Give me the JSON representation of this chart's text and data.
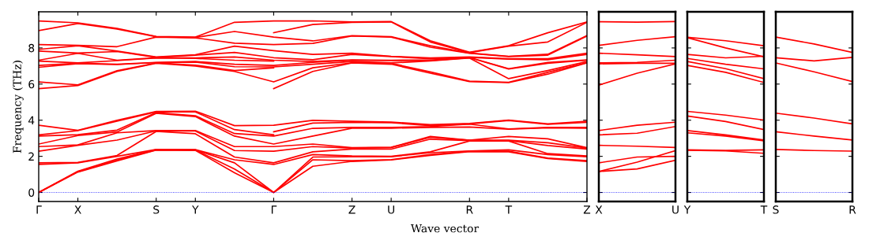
{
  "chart_data": [
    {
      "type": "line",
      "xlabel": "Wave vector",
      "ylabel": "Frequency (THz)",
      "categories": [
        "Γ",
        "X",
        null,
        "S",
        "Y",
        null,
        "Γ",
        null,
        "Z",
        "U",
        null,
        "R",
        "T",
        null,
        "Z"
      ],
      "ylim": [
        -0.5,
        10
      ],
      "yticks": [
        0,
        2,
        4,
        6,
        8
      ],
      "grid": false,
      "marker": "none",
      "line_style": "solid",
      "ref_lines": [
        {
          "axis": "y",
          "value": 0,
          "color": "#0000ff",
          "line_style": "dotted"
        }
      ],
      "series": [
        {
          "color": "#ff0000",
          "values": [
            0,
            1.13,
            1.75,
            2.35,
            2.33,
            1.09,
            0,
            1.45,
            1.72,
            1.8,
            2.05,
            2.26,
            2.25,
            1.88,
            1.72
          ]
        },
        {
          "color": "#ff0000",
          "values": [
            0,
            1.15,
            1.8,
            2.36,
            2.35,
            1.3,
            0,
            1.81,
            1.76,
            1.82,
            2.1,
            2.28,
            2.28,
            1.9,
            1.76
          ]
        },
        {
          "color": "#ff0000",
          "values": [
            0,
            1.18,
            1.85,
            2.37,
            2.36,
            1.64,
            0,
            1.96,
            1.98,
            1.98,
            2.2,
            2.3,
            2.36,
            2.1,
            1.98
          ]
        },
        {
          "color": "#ff0000",
          "values": [
            1.55,
            1.64,
            2.0,
            2.38,
            2.37,
            1.81,
            1.55,
            2.1,
            2.02,
            2.0,
            2.25,
            2.85,
            2.85,
            2.15,
            2.02
          ]
        },
        {
          "color": "#ff0000",
          "values": [
            1.64,
            1.66,
            2.05,
            3.38,
            3.25,
            1.96,
            1.64,
            2.25,
            2.4,
            2.4,
            2.95,
            2.87,
            2.87,
            2.6,
            2.4
          ]
        },
        {
          "color": "#ff0000",
          "values": [
            2.28,
            2.61,
            2.9,
            3.41,
            3.4,
            2.32,
            2.28,
            2.54,
            2.46,
            2.49,
            3.05,
            2.89,
            2.9,
            2.75,
            2.46
          ]
        },
        {
          "color": "#ff0000",
          "values": [
            2.54,
            2.63,
            3.3,
            3.43,
            3.43,
            2.54,
            2.54,
            2.68,
            2.48,
            2.5,
            3.1,
            2.9,
            3.1,
            2.97,
            2.48
          ]
        },
        {
          "color": "#ff0000",
          "values": [
            2.68,
            3.15,
            3.35,
            4.38,
            4.2,
            3.12,
            2.68,
            3.12,
            3.56,
            3.56,
            3.6,
            3.62,
            3.5,
            3.58,
            3.56
          ]
        },
        {
          "color": "#ff0000",
          "values": [
            3.12,
            3.2,
            3.45,
            4.42,
            4.25,
            3.26,
            3.12,
            3.55,
            3.6,
            3.6,
            3.65,
            3.78,
            3.52,
            3.6,
            3.6
          ]
        },
        {
          "color": "#ff0000",
          "values": [
            3.19,
            3.42,
            3.95,
            4.46,
            4.46,
            3.48,
            3.19,
            null,
            null,
            null,
            null,
            null,
            null,
            null,
            null
          ]
        },
        {
          "color": "#ff0000",
          "values": [
            3.72,
            3.44,
            4.0,
            4.49,
            4.5,
            3.7,
            3.72,
            3.99,
            3.94,
            3.9,
            3.75,
            3.82,
            4.01,
            3.8,
            3.94
          ]
        },
        {
          "color": "#ff0000",
          "values": [
            null,
            null,
            null,
            null,
            null,
            null,
            3.36,
            3.84,
            3.88,
            3.86,
            3.7,
            3.8,
            3.98,
            3.77,
            3.88
          ]
        },
        {
          "color": "#ff0000",
          "values": [
            5.75,
            5.92,
            6.7,
            7.15,
            7.0,
            6.7,
            6.12,
            6.9,
            7.18,
            7.15,
            6.67,
            6.16,
            6.1,
            6.65,
            7.18
          ]
        },
        {
          "color": "#ff0000",
          "values": [
            null,
            null,
            null,
            null,
            null,
            null,
            5.75,
            6.7,
            7.17,
            7.1,
            6.6,
            6.14,
            6.08,
            6.55,
            7.17
          ]
        },
        {
          "color": "#ff0000",
          "values": [
            6.12,
            5.96,
            6.74,
            7.17,
            7.05,
            6.75,
            6.9,
            null,
            null,
            null,
            null,
            null,
            null,
            null,
            null
          ]
        },
        {
          "color": "#ff0000",
          "values": [
            6.93,
            7.13,
            7.08,
            7.19,
            7.22,
            6.96,
            6.95,
            7.1,
            7.25,
            7.17,
            7.28,
            7.44,
            6.3,
            6.75,
            7.25
          ]
        },
        {
          "color": "#ff0000",
          "values": [
            7.03,
            7.15,
            7.1,
            7.2,
            7.25,
            7.1,
            7.03,
            7.2,
            7.32,
            7.3,
            7.3,
            7.46,
            6.83,
            7.15,
            7.32
          ]
        },
        {
          "color": "#ff0000",
          "values": [
            7.27,
            7.17,
            7.3,
            7.44,
            7.42,
            7.32,
            7.27,
            null,
            null,
            null,
            null,
            null,
            null,
            null,
            null
          ]
        },
        {
          "color": "#ff0000",
          "values": [
            7.32,
            7.7,
            7.32,
            7.46,
            7.45,
            7.5,
            7.32,
            7.25,
            7.34,
            7.32,
            7.33,
            7.47,
            6.85,
            7.2,
            7.34
          ]
        },
        {
          "color": "#ff0000",
          "values": [
            7.83,
            7.72,
            7.8,
            7.48,
            7.6,
            7.75,
            7.46,
            7.35,
            7.64,
            7.52,
            7.4,
            7.48,
            7.38,
            7.35,
            7.64
          ]
        },
        {
          "color": "#ff0000",
          "values": [
            7.92,
            8.12,
            7.83,
            7.5,
            7.62,
            8.1,
            7.85,
            7.64,
            7.71,
            7.54,
            7.45,
            7.5,
            7.4,
            7.4,
            7.71
          ]
        },
        {
          "color": "#ff0000",
          "values": [
            8.19,
            8.14,
            8.07,
            8.6,
            8.56,
            8.26,
            8.19,
            8.25,
            8.66,
            8.6,
            8.04,
            7.7,
            7.52,
            7.6,
            8.66
          ]
        },
        {
          "color": "#ff0000",
          "values": [
            8.96,
            9.35,
            9.04,
            8.62,
            8.58,
            8.91,
            8.6,
            8.39,
            8.68,
            8.62,
            8.12,
            7.72,
            7.54,
            7.65,
            8.68
          ]
        },
        {
          "color": "#ff0000",
          "values": [
            null,
            null,
            null,
            null,
            null,
            null,
            8.84,
            9.3,
            9.42,
            9.44,
            8.33,
            7.74,
            8.1,
            8.33,
            9.42
          ]
        },
        {
          "color": "#ff0000",
          "values": [
            9.49,
            9.39,
            9.08,
            8.64,
            8.6,
            9.42,
            9.49,
            9.5,
            9.44,
            9.46,
            8.4,
            7.76,
            8.12,
            8.84,
            9.44
          ]
        }
      ]
    },
    {
      "type": "line",
      "categories": [
        "X",
        null,
        "U"
      ],
      "ylim": [
        -0.5,
        10
      ],
      "yticks": [
        0,
        2,
        4,
        6,
        8
      ],
      "tick_labels": "x",
      "grid": false,
      "marker": "none",
      "line_style": "solid",
      "ref_lines": [
        {
          "axis": "y",
          "value": 0,
          "color": "#0000ff",
          "line_style": "dotted"
        }
      ],
      "series": [
        {
          "color": "#ff0000",
          "values": [
            9.45,
            9.43,
            9.46
          ]
        },
        {
          "color": "#ff0000",
          "values": [
            8.14,
            8.42,
            8.62
          ]
        },
        {
          "color": "#ff0000",
          "values": [
            7.71,
            7.62,
            7.52
          ]
        },
        {
          "color": "#ff0000",
          "values": [
            7.17,
            7.2,
            7.32
          ]
        },
        {
          "color": "#ff0000",
          "values": [
            7.12,
            7.15,
            7.15
          ]
        },
        {
          "color": "#ff0000",
          "values": [
            5.94,
            6.6,
            7.12
          ]
        },
        {
          "color": "#ff0000",
          "values": [
            3.43,
            3.72,
            3.89
          ]
        },
        {
          "color": "#ff0000",
          "values": [
            3.19,
            3.28,
            3.65
          ]
        },
        {
          "color": "#ff0000",
          "values": [
            2.61,
            2.56,
            2.49
          ]
        },
        {
          "color": "#ff0000",
          "values": [
            1.64,
            1.96,
            2.0
          ]
        },
        {
          "color": "#ff0000",
          "values": [
            1.16,
            1.68,
            2.32
          ]
        },
        {
          "color": "#ff0000",
          "values": [
            1.16,
            1.3,
            1.78
          ]
        }
      ]
    },
    {
      "type": "line",
      "categories": [
        "Y",
        null,
        "T"
      ],
      "ylim": [
        -0.5,
        10
      ],
      "yticks": [
        0,
        2,
        4,
        6,
        8
      ],
      "tick_labels": "x",
      "grid": false,
      "marker": "none",
      "line_style": "solid",
      "ref_lines": [
        {
          "axis": "y",
          "value": 0,
          "color": "#0000ff",
          "line_style": "dotted"
        }
      ],
      "series": [
        {
          "color": "#ff0000",
          "values": [
            8.59,
            8.4,
            8.12
          ]
        },
        {
          "color": "#ff0000",
          "values": [
            8.57,
            8.0,
            7.51
          ]
        },
        {
          "color": "#ff0000",
          "values": [
            7.64,
            7.45,
            7.54
          ]
        },
        {
          "color": "#ff0000",
          "values": [
            7.42,
            7.1,
            6.84
          ]
        },
        {
          "color": "#ff0000",
          "values": [
            7.25,
            6.85,
            6.3
          ]
        },
        {
          "color": "#ff0000",
          "values": [
            7.03,
            6.65,
            6.09
          ]
        },
        {
          "color": "#ff0000",
          "values": [
            4.49,
            4.28,
            4.01
          ]
        },
        {
          "color": "#ff0000",
          "values": [
            4.23,
            3.93,
            3.48
          ]
        },
        {
          "color": "#ff0000",
          "values": [
            3.43,
            3.19,
            2.9
          ]
        },
        {
          "color": "#ff0000",
          "values": [
            3.3,
            3.12,
            2.86
          ]
        },
        {
          "color": "#ff0000",
          "values": [
            2.36,
            2.33,
            2.36
          ]
        },
        {
          "color": "#ff0000",
          "values": [
            2.34,
            2.3,
            2.17
          ]
        }
      ]
    },
    {
      "type": "line",
      "categories": [
        "S",
        null,
        "R"
      ],
      "ylim": [
        -0.5,
        10
      ],
      "yticks": [
        0,
        2,
        4,
        6,
        8
      ],
      "tick_labels": "x",
      "grid": false,
      "marker": "none",
      "line_style": "solid",
      "ref_lines": [
        {
          "axis": "y",
          "value": 0,
          "color": "#0000ff",
          "line_style": "dotted"
        }
      ],
      "series": [
        {
          "color": "#ff0000",
          "values": [
            8.6,
            8.22,
            7.75
          ]
        },
        {
          "color": "#ff0000",
          "values": [
            7.46,
            7.28,
            7.48
          ]
        },
        {
          "color": "#ff0000",
          "values": [
            7.17,
            6.68,
            6.14
          ]
        },
        {
          "color": "#ff0000",
          "values": [
            4.39,
            4.12,
            3.8
          ]
        },
        {
          "color": "#ff0000",
          "values": [
            3.36,
            3.12,
            2.9
          ]
        },
        {
          "color": "#ff0000",
          "values": [
            2.38,
            2.32,
            2.29
          ]
        }
      ]
    }
  ]
}
